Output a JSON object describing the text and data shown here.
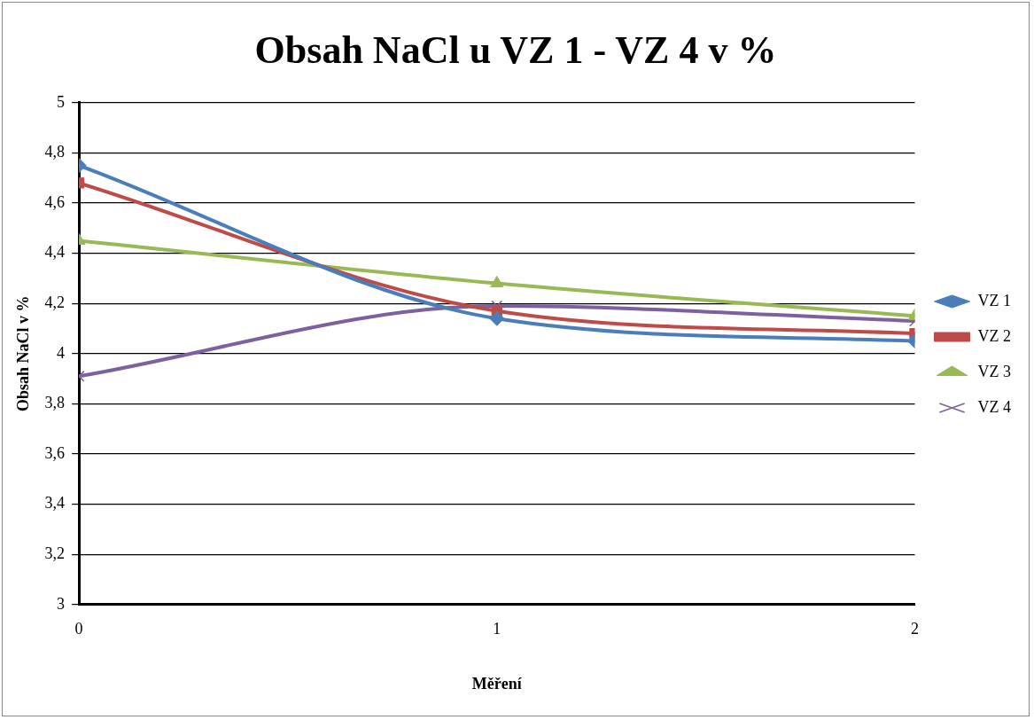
{
  "chart_data": {
    "type": "line",
    "title": "Obsah NaCl u VZ 1 - VZ 4 v %",
    "xlabel": "Měření",
    "ylabel": "Obsah NaCl v %",
    "x": [
      0,
      1,
      2
    ],
    "xlim": [
      0,
      2
    ],
    "xticks": [
      0,
      1,
      2
    ],
    "ylim": [
      3,
      5
    ],
    "yticks": [
      3,
      {
        "value": 3.2,
        "label": "3,2"
      },
      {
        "value": 3.4,
        "label": "3,4"
      },
      {
        "value": 3.6,
        "label": "3,6"
      },
      {
        "value": 3.8,
        "label": "3,8"
      },
      4,
      {
        "value": 4.2,
        "label": "4,2"
      },
      {
        "value": 4.4,
        "label": "4,4"
      },
      {
        "value": 4.6,
        "label": "4,6"
      },
      {
        "value": 4.8,
        "label": "4,8"
      },
      5
    ],
    "grid": "y",
    "legend": "right",
    "series": [
      {
        "name": "VZ 1",
        "color": "#4a7ebb",
        "marker": "diamond",
        "values": [
          4.75,
          4.14,
          4.05
        ]
      },
      {
        "name": "VZ 2",
        "color": "#be4b48",
        "marker": "square",
        "values": [
          4.68,
          4.17,
          4.08
        ]
      },
      {
        "name": "VZ 3",
        "color": "#98b954",
        "marker": "triangle",
        "values": [
          4.45,
          4.28,
          4.15
        ]
      },
      {
        "name": "VZ 4",
        "color": "#7d60a0",
        "marker": "cross",
        "values": [
          3.91,
          4.19,
          4.13
        ]
      }
    ]
  }
}
